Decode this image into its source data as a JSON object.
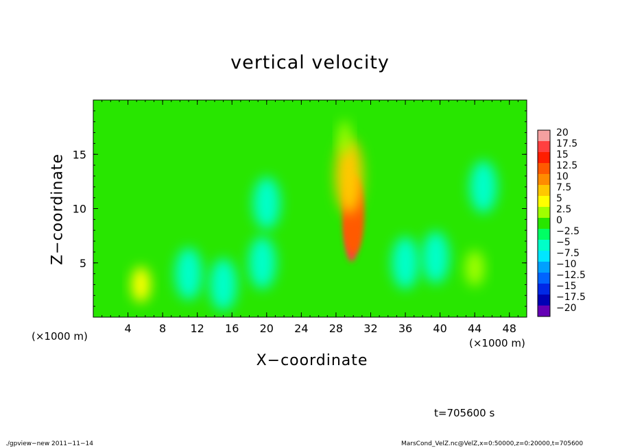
{
  "chart_data": {
    "type": "heatmap",
    "title": "vertical velocity",
    "xlabel": "X−coordinate",
    "ylabel": "Z−coordinate",
    "x_unit_left": "(×1000 m)",
    "x_unit_right": "(×1000 m)",
    "xlim": [
      0,
      50
    ],
    "ylim": [
      0,
      20
    ],
    "xticks": [
      4,
      8,
      12,
      16,
      20,
      24,
      28,
      32,
      36,
      40,
      44,
      48
    ],
    "yticks": [
      5,
      10,
      15
    ],
    "xtick_labels": [
      "4",
      "8",
      "12",
      "16",
      "20",
      "24",
      "28",
      "32",
      "36",
      "40",
      "44",
      "48"
    ],
    "ytick_labels": [
      "5",
      "10",
      "15"
    ],
    "colorbar": {
      "levels": [
        20,
        17.5,
        15,
        12.5,
        10,
        7.5,
        5,
        2.5,
        0,
        -2.5,
        -5,
        -7.5,
        -10,
        -12.5,
        -15,
        -17.5,
        -20
      ],
      "labels": [
        "20",
        "17.5",
        "15",
        "12.5",
        "10",
        "7.5",
        "5",
        "2.5",
        "0",
        "−2.5",
        "−5",
        "−7.5",
        "−10",
        "−12.5",
        "−15",
        "−17.5",
        "−20"
      ],
      "colors": [
        "#f5a0a0",
        "#ff4040",
        "#ff1e00",
        "#ff5a00",
        "#ff8c00",
        "#ffc800",
        "#ffff00",
        "#a0ff00",
        "#28e600",
        "#00ff64",
        "#00ffc8",
        "#00e6ff",
        "#00a0ff",
        "#0064ff",
        "#0028e6",
        "#0000b4",
        "#6400b4"
      ]
    },
    "features": [
      {
        "x": 29.8,
        "z": 7.5,
        "value": 18.5
      },
      {
        "x": 30.0,
        "z": 9.5,
        "value": 14
      },
      {
        "x": 29.5,
        "z": 13,
        "value": 8
      },
      {
        "x": 29.0,
        "z": 16.5,
        "value": 4
      },
      {
        "x": 5.5,
        "z": 3.0,
        "value": 6
      },
      {
        "x": 44.0,
        "z": 4.5,
        "value": 4
      },
      {
        "x": 11.0,
        "z": 4.0,
        "value": -4
      },
      {
        "x": 19.5,
        "z": 5.0,
        "value": -4
      },
      {
        "x": 20.0,
        "z": 10.5,
        "value": -3
      },
      {
        "x": 36.0,
        "z": 5.0,
        "value": -4
      },
      {
        "x": 39.5,
        "z": 5.5,
        "value": -5
      },
      {
        "x": 45.0,
        "z": 12.0,
        "value": -3
      },
      {
        "x": 15.0,
        "z": 3.0,
        "value": -3
      }
    ]
  },
  "annotations": {
    "time": "t=705600 s",
    "footer_left": "./gpview−new  2011−11−14",
    "footer_right": "MarsCond_VelZ.nc@VelZ,x=0:50000,z=0:20000,t=705600"
  }
}
